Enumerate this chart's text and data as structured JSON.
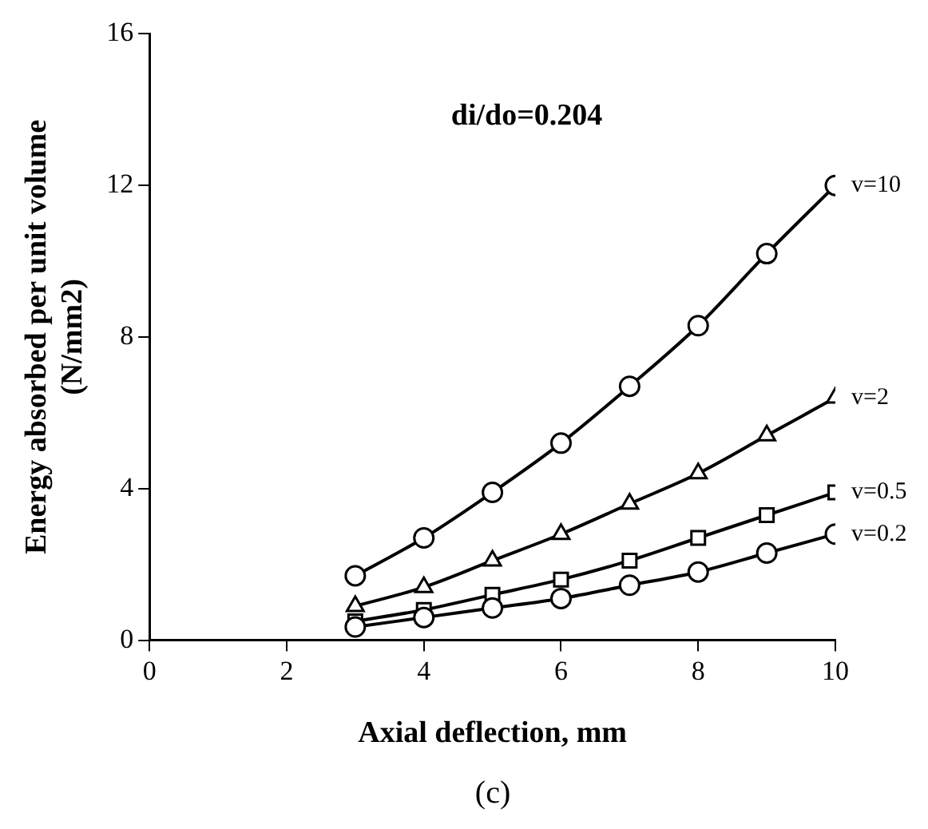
{
  "chart_data": {
    "type": "line",
    "title": "di/do=0.204",
    "xlabel": "Axial deflection, mm",
    "ylabel": "Energy absorbed per unit volume\n(N/mm2)",
    "x": [
      3,
      4,
      5,
      6,
      7,
      8,
      9,
      10
    ],
    "series": [
      {
        "name": "v=10",
        "color": "#000000",
        "marker": "circle",
        "values": [
          1.7,
          2.7,
          3.9,
          5.2,
          6.7,
          8.3,
          10.2,
          12.0
        ]
      },
      {
        "name": "v=2",
        "color": "#000000",
        "marker": "triangle",
        "values": [
          0.9,
          1.4,
          2.1,
          2.8,
          3.6,
          4.4,
          5.4,
          6.4
        ]
      },
      {
        "name": "v=0.5",
        "color": "#000000",
        "marker": "square",
        "values": [
          0.5,
          0.8,
          1.2,
          1.6,
          2.1,
          2.7,
          3.3,
          3.9
        ]
      },
      {
        "name": "v=0.2",
        "color": "#000000",
        "marker": "circle",
        "values": [
          0.35,
          0.6,
          0.85,
          1.1,
          1.45,
          1.8,
          2.3,
          2.8
        ]
      }
    ],
    "xlim": [
      0,
      10
    ],
    "xticks": [
      0,
      2,
      4,
      6,
      8,
      10
    ],
    "ylim": [
      0,
      16
    ],
    "yticks": [
      0,
      4,
      8,
      12,
      16
    ],
    "grid": false,
    "legend": false,
    "annotations": [
      "(c)"
    ]
  }
}
